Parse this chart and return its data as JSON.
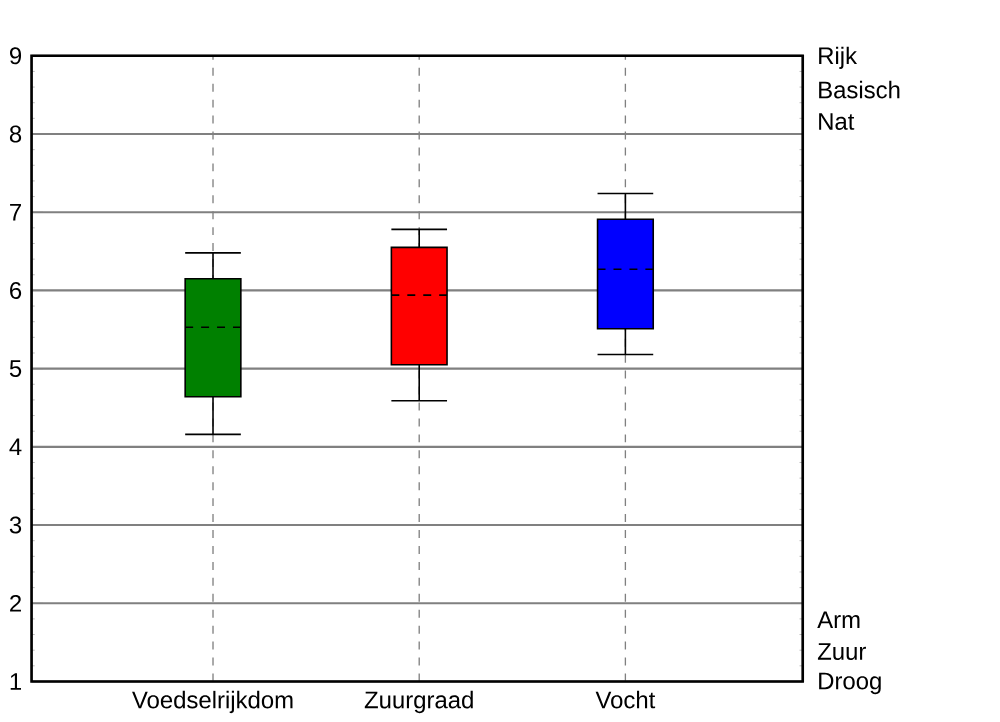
{
  "chart_data": {
    "type": "box",
    "categories": [
      "Voedselrijkdom",
      "Zuurgraad",
      "Vocht"
    ],
    "boxes": [
      {
        "low": 4.16,
        "q1": 4.64,
        "median": 5.53,
        "q3": 6.15,
        "high": 6.48
      },
      {
        "low": 4.59,
        "q1": 5.05,
        "median": 5.94,
        "q3": 6.55,
        "high": 6.78
      },
      {
        "low": 5.18,
        "q1": 5.51,
        "median": 6.27,
        "q3": 6.91,
        "high": 7.24
      }
    ],
    "colors": [
      "#008000",
      "#ff0000",
      "#0000ff"
    ],
    "ylim": [
      1,
      9
    ],
    "yticks": [
      1,
      2,
      3,
      4,
      5,
      6,
      7,
      8,
      9
    ],
    "grid": true,
    "annotations": [
      "Rijk",
      "Basisch",
      "Nat",
      "Arm",
      "Zuur",
      "Droog"
    ]
  }
}
